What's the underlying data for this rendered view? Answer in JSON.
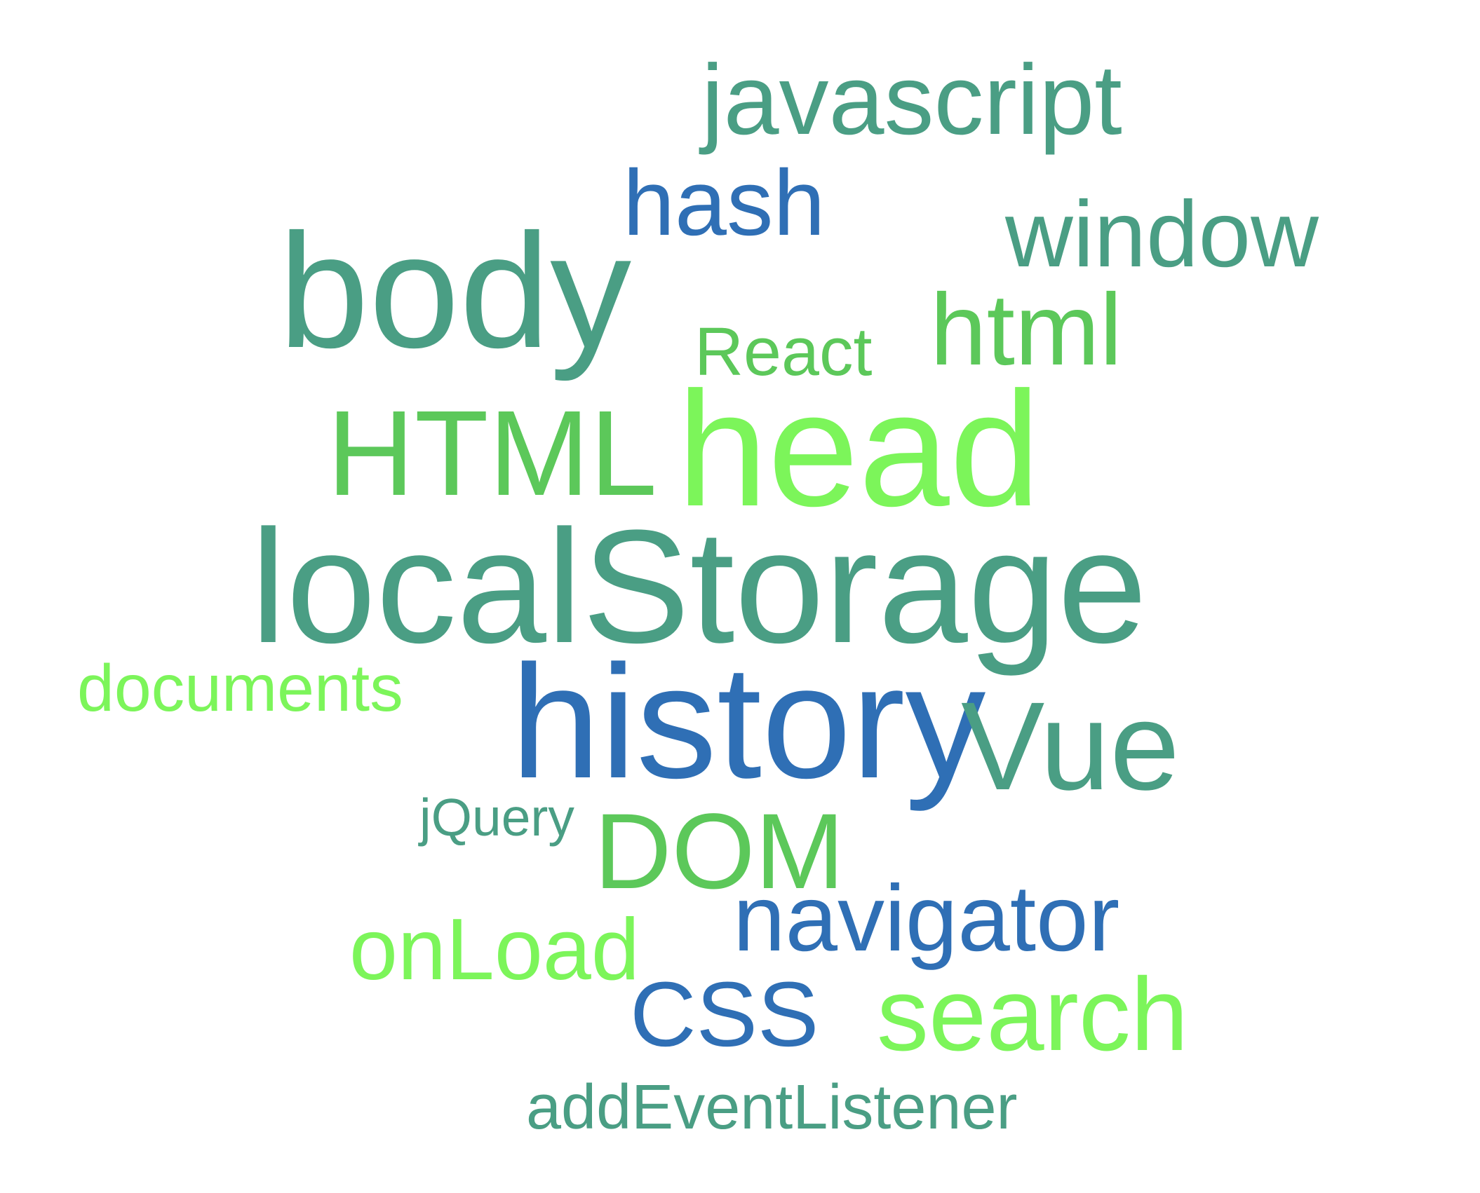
{
  "word_cloud": {
    "colors": {
      "green_teal": "#4a9e84",
      "blue": "#2f6fb5",
      "mid_green": "#5cc85a",
      "light_green": "#7cf55a"
    },
    "words": [
      {
        "text": "javascript",
        "color": "#4a9e84"
      },
      {
        "text": "hash",
        "color": "#2f6fb5"
      },
      {
        "text": "window",
        "color": "#4a9e84"
      },
      {
        "text": "body",
        "color": "#4a9e84"
      },
      {
        "text": "React",
        "color": "#5cc85a"
      },
      {
        "text": "html",
        "color": "#5cc85a"
      },
      {
        "text": "HTML",
        "color": "#5cc85a"
      },
      {
        "text": "head",
        "color": "#7cf55a"
      },
      {
        "text": "localStorage",
        "color": "#4a9e84"
      },
      {
        "text": "documents",
        "color": "#7cf55a"
      },
      {
        "text": "history",
        "color": "#2f6fb5"
      },
      {
        "text": "Vue",
        "color": "#4a9e84"
      },
      {
        "text": "jQuery",
        "color": "#4a9e84"
      },
      {
        "text": "DOM",
        "color": "#5cc85a"
      },
      {
        "text": "navigator",
        "color": "#2f6fb5"
      },
      {
        "text": "onLoad",
        "color": "#7cf55a"
      },
      {
        "text": "CSS",
        "color": "#2f6fb5"
      },
      {
        "text": "search",
        "color": "#7cf55a"
      },
      {
        "text": "addEventListener",
        "color": "#4a9e84"
      }
    ]
  }
}
